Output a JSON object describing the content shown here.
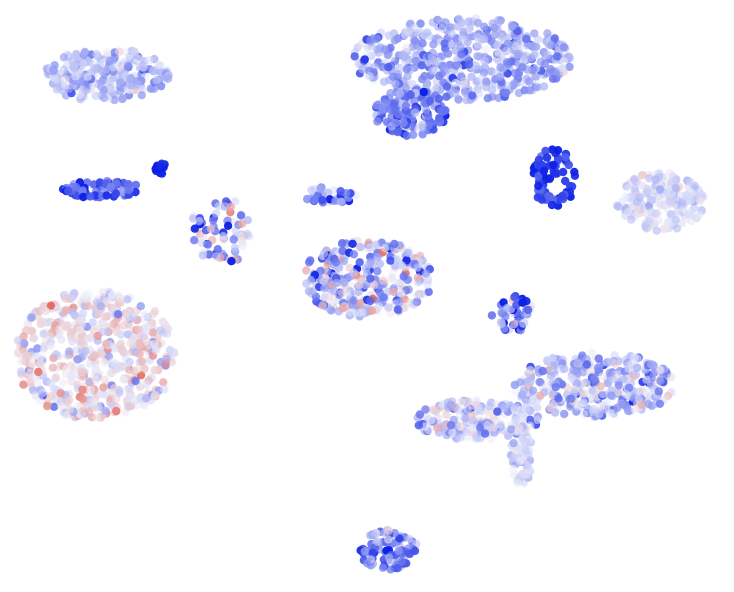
{
  "chart_data": {
    "type": "scatter",
    "title": "",
    "xlabel": "",
    "ylabel": "",
    "axes_visible": false,
    "grid": false,
    "legend": "none",
    "color_scale": {
      "low": "#0a1ee6",
      "mid": "#eef0fb",
      "high": "#e04a3a"
    },
    "clusters": [
      {
        "name": "c1",
        "cx": 0.145,
        "cy": 0.127,
        "rx": 0.085,
        "ry": 0.045,
        "n": 260,
        "value": -0.25,
        "spread": 0.18
      },
      {
        "name": "c2",
        "cx": 0.63,
        "cy": 0.1,
        "rx": 0.15,
        "ry": 0.07,
        "n": 480,
        "value": -0.35,
        "spread": 0.2
      },
      {
        "name": "c3",
        "cx": 0.56,
        "cy": 0.19,
        "rx": 0.05,
        "ry": 0.04,
        "n": 140,
        "value": -0.55,
        "spread": 0.2
      },
      {
        "name": "c4",
        "cx": 0.755,
        "cy": 0.3,
        "rx": 0.03,
        "ry": 0.05,
        "n": 70,
        "value": -0.85,
        "spread": 0.12
      },
      {
        "name": "c5",
        "cx": 0.9,
        "cy": 0.34,
        "rx": 0.06,
        "ry": 0.05,
        "n": 190,
        "value": -0.1,
        "spread": 0.15
      },
      {
        "name": "c6",
        "cx": 0.14,
        "cy": 0.32,
        "rx": 0.055,
        "ry": 0.015,
        "n": 70,
        "value": -0.7,
        "spread": 0.25
      },
      {
        "name": "c7",
        "cx": 0.22,
        "cy": 0.285,
        "rx": 0.008,
        "ry": 0.01,
        "n": 14,
        "value": -1.0,
        "spread": 0.05
      },
      {
        "name": "c8",
        "cx": 0.3,
        "cy": 0.39,
        "rx": 0.04,
        "ry": 0.06,
        "n": 70,
        "value": -0.3,
        "spread": 0.5
      },
      {
        "name": "c9",
        "cx": 0.45,
        "cy": 0.33,
        "rx": 0.035,
        "ry": 0.015,
        "n": 35,
        "value": -0.55,
        "spread": 0.3
      },
      {
        "name": "c10",
        "cx": 0.5,
        "cy": 0.47,
        "rx": 0.09,
        "ry": 0.065,
        "n": 320,
        "value": -0.2,
        "spread": 0.35
      },
      {
        "name": "c11",
        "cx": 0.7,
        "cy": 0.53,
        "rx": 0.03,
        "ry": 0.03,
        "n": 45,
        "value": -0.5,
        "spread": 0.4
      },
      {
        "name": "c12",
        "cx": 0.13,
        "cy": 0.6,
        "rx": 0.11,
        "ry": 0.11,
        "n": 560,
        "value": 0.05,
        "spread": 0.25
      },
      {
        "name": "c13",
        "cx": 0.81,
        "cy": 0.65,
        "rx": 0.11,
        "ry": 0.055,
        "n": 330,
        "value": -0.25,
        "spread": 0.25
      },
      {
        "name": "c14",
        "cx": 0.65,
        "cy": 0.71,
        "rx": 0.085,
        "ry": 0.035,
        "n": 200,
        "value": -0.15,
        "spread": 0.25
      },
      {
        "name": "c15",
        "cx": 0.71,
        "cy": 0.77,
        "rx": 0.015,
        "ry": 0.05,
        "n": 60,
        "value": -0.1,
        "spread": 0.15
      },
      {
        "name": "c16",
        "cx": 0.53,
        "cy": 0.93,
        "rx": 0.04,
        "ry": 0.035,
        "n": 90,
        "value": -0.5,
        "spread": 0.3
      }
    ]
  }
}
